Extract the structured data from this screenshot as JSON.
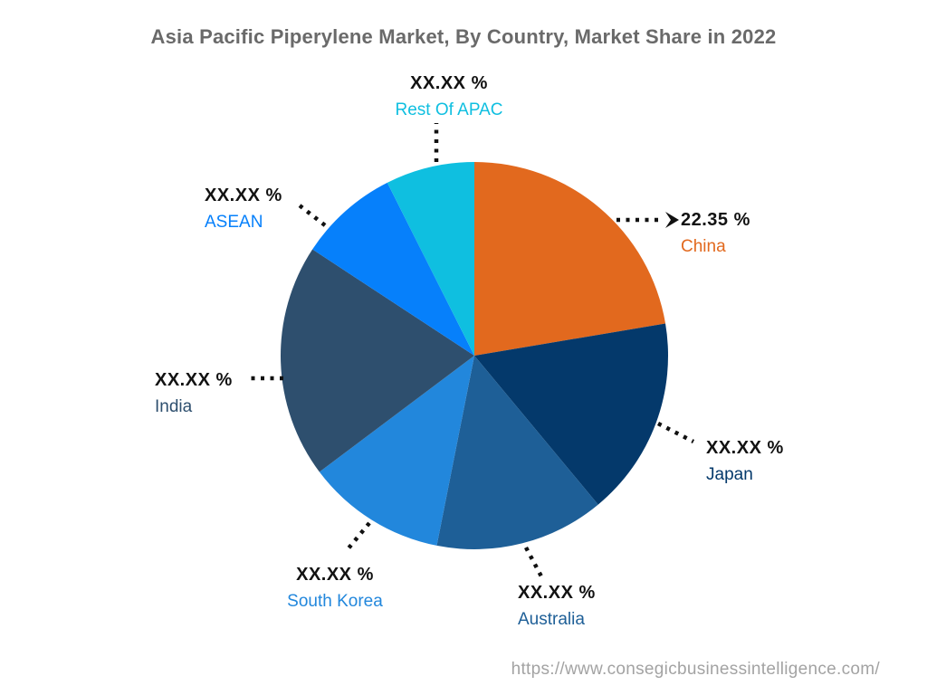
{
  "footer": {
    "url": "https://www.consegicbusinessintelligence.com/"
  },
  "chart_data": {
    "type": "pie",
    "title": "Asia Pacific Piperylene Market, By Country, Market Share in 2022",
    "legend_position": "none",
    "label_style": "external-callouts-with-dotted-leaders",
    "start_angle_deg": 0,
    "clockwise": true,
    "slices": [
      {
        "label": "China",
        "value_display": "22.35 %",
        "value_pct": 22.35,
        "color": "#E2691E"
      },
      {
        "label": "Japan",
        "value_display": "XX.XX %",
        "value_pct": 16.62,
        "color": "#04396B"
      },
      {
        "label": "Australia",
        "value_display": "XX.XX %",
        "value_pct": 14.14,
        "color": "#1E5F97"
      },
      {
        "label": "South Korea",
        "value_display": "XX.XX %",
        "value_pct": 11.64,
        "color": "#2287DC"
      },
      {
        "label": "India",
        "value_display": "XX.XX %",
        "value_pct": 19.5,
        "color": "#2E4F6E"
      },
      {
        "label": "ASEAN",
        "value_display": "XX.XX %",
        "value_pct": 8.33,
        "color": "#0680FB"
      },
      {
        "label": "Rest Of APAC",
        "value_display": "XX.XX %",
        "value_pct": 7.42,
        "color": "#0FBFE0"
      }
    ]
  }
}
